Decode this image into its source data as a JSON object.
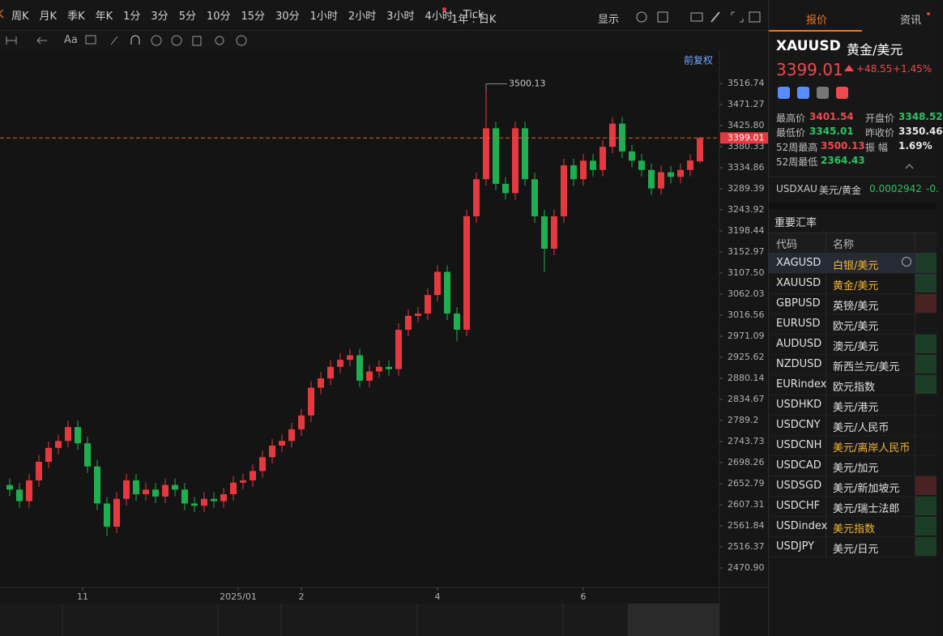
{
  "toolbar": {
    "timeframes": [
      "周K",
      "月K",
      "季K",
      "年K",
      "1分",
      "3分",
      "5分",
      "10分",
      "15分",
      "30分",
      "1小时",
      "2小时",
      "3小时",
      "4小时",
      "Tick"
    ],
    "range": "1年 : 日K",
    "display": "显示",
    "text_tool": "Aa"
  },
  "chart_data": {
    "type": "candlestick",
    "adjust": "前复权",
    "up_color": "#e5393f",
    "down_color": "#1fae50",
    "grid": false,
    "ylim": [
      2428.9,
      3588.4
    ],
    "yticks": [
      3516.74,
      3471.27,
      {
        "value": 3425.8,
        "label": "3425.80"
      },
      3380.33,
      3334.86,
      3289.39,
      3243.92,
      3198.44,
      3152.97,
      {
        "value": 3107.5,
        "label": "3107.50"
      },
      3062.03,
      3016.56,
      2971.09,
      2925.62,
      2880.14,
      2834.67,
      2789.2,
      2743.73,
      2698.26,
      2652.79,
      2607.31,
      2561.84,
      2516.37,
      {
        "value": 2470.9,
        "label": "2470.90"
      }
    ],
    "xlim": [
      -1,
      72
    ],
    "xticks": [
      {
        "value": 7.5,
        "label": "11"
      },
      {
        "value": 23.5,
        "label": "2025/01"
      },
      {
        "value": 30,
        "label": "2"
      },
      {
        "value": 44,
        "label": "4"
      },
      {
        "value": 59,
        "label": "6"
      }
    ],
    "last_price": 3399.01,
    "high_label": 3500.13,
    "high_index": 49,
    "open": [
      2650,
      2640,
      2615,
      2660,
      2700,
      2730,
      2745,
      2775,
      2740,
      2690,
      2610,
      2560,
      2620,
      2660,
      2630,
      2640,
      2625,
      2650,
      2640,
      2610,
      2605,
      2620,
      2615,
      2630,
      2655,
      2660,
      2680,
      2710,
      2735,
      2745,
      2770,
      2800,
      2860,
      2880,
      2905,
      2920,
      2930,
      2875,
      2895,
      2905,
      2900,
      2985,
      3015,
      3020,
      3060,
      3110,
      3020,
      2985,
      3230,
      3310,
      3420,
      3300,
      3280,
      3420,
      3310,
      3230,
      3160,
      3230,
      3340,
      3310,
      3350,
      3330,
      3380,
      3430,
      3370,
      3350,
      3330,
      3290,
      3325,
      3315,
      3330,
      3348.52
    ],
    "high": [
      2664,
      2654,
      2674,
      2714,
      2744,
      2759,
      2789,
      2789,
      2754,
      2704,
      2624,
      2634,
      2674,
      2674,
      2654,
      2654,
      2664,
      2664,
      2654,
      2624,
      2634,
      2634,
      2644,
      2669,
      2674,
      2694,
      2724,
      2749,
      2759,
      2784,
      2814,
      2874,
      2894,
      2919,
      2934,
      2944,
      2944,
      2909,
      2919,
      2919,
      2999,
      3029,
      3034,
      3074,
      3124,
      3124,
      3034,
      3244,
      3324,
      3500.13,
      3434,
      3314,
      3434,
      3434,
      3324,
      3244,
      3244,
      3354,
      3354,
      3364,
      3364,
      3394,
      3444,
      3444,
      3384,
      3364,
      3344,
      3339,
      3339,
      3344,
      3364,
      3401.54
    ],
    "low": [
      2626,
      2601,
      2601,
      2646,
      2686,
      2716,
      2731,
      2726,
      2676,
      2596,
      2540,
      2546,
      2606,
      2616,
      2616,
      2611,
      2611,
      2626,
      2596,
      2591,
      2591,
      2601,
      2601,
      2616,
      2641,
      2646,
      2666,
      2696,
      2721,
      2731,
      2756,
      2786,
      2846,
      2866,
      2891,
      2906,
      2861,
      2861,
      2881,
      2886,
      2886,
      2971,
      3001,
      3006,
      3046,
      3006,
      2960,
      2971,
      3216,
      3296,
      3286,
      3266,
      3266,
      3296,
      3216,
      3110,
      3146,
      3216,
      3296,
      3296,
      3316,
      3316,
      3366,
      3356,
      3336,
      3316,
      3276,
      3276,
      3301,
      3301,
      3316,
      3345.01
    ],
    "close": [
      2640,
      2615,
      2660,
      2700,
      2730,
      2745,
      2775,
      2740,
      2690,
      2610,
      2560,
      2620,
      2660,
      2630,
      2640,
      2625,
      2650,
      2640,
      2610,
      2605,
      2620,
      2615,
      2630,
      2655,
      2660,
      2680,
      2710,
      2735,
      2745,
      2770,
      2800,
      2860,
      2880,
      2905,
      2920,
      2930,
      2875,
      2895,
      2905,
      2900,
      2985,
      3015,
      3020,
      3060,
      3110,
      3020,
      2985,
      3230,
      3310,
      3420,
      3300,
      3280,
      3420,
      3310,
      3230,
      3160,
      3230,
      3340,
      3310,
      3350,
      3330,
      3380,
      3430,
      3370,
      3350,
      3330,
      3290,
      3325,
      3315,
      3330,
      3350.46,
      3399.01
    ]
  },
  "quote": {
    "tabs": [
      "报价",
      "资讯"
    ],
    "symbol": "XAUUSD",
    "name": "黄金/美元",
    "price": "3399.01",
    "change": "+48.55",
    "change_pct": "+1.45%",
    "stats": [
      {
        "label": "最高价",
        "value": "3401.54",
        "tone": "up"
      },
      {
        "label": "开盘价",
        "value": "3348.52",
        "tone": "down"
      },
      {
        "label": "最低价",
        "value": "3345.01",
        "tone": "down"
      },
      {
        "label": "昨收价",
        "value": "3350.46",
        "tone": "flat"
      },
      {
        "label": "52周最高",
        "value": "3500.13",
        "tone": "up"
      },
      {
        "label": "振 幅",
        "value": "1.69%",
        "tone": "flat"
      },
      {
        "label": "52周最低",
        "value": "2364.43",
        "tone": "down"
      }
    ],
    "cross": {
      "pair": "USDXAU",
      "name": "美元/黄金",
      "value": "0.0002942",
      "change": "-0."
    }
  },
  "rates": {
    "title": "重要汇率",
    "headers": [
      "代码",
      "名称"
    ],
    "rows": [
      {
        "code": "XAGUSD",
        "name": "白银/美元",
        "highlight": true,
        "trend": "down"
      },
      {
        "code": "XAUUSD",
        "name": "黄金/美元",
        "highlight": true,
        "trend": "down"
      },
      {
        "code": "GBPUSD",
        "name": "英镑/美元",
        "highlight": false,
        "trend": "up"
      },
      {
        "code": "EURUSD",
        "name": "欧元/美元",
        "highlight": false
      },
      {
        "code": "AUDUSD",
        "name": "澳元/美元",
        "highlight": false,
        "trend": "down"
      },
      {
        "code": "NZDUSD",
        "name": "新西兰元/美元",
        "highlight": false,
        "trend": "down"
      },
      {
        "code": "EURindex",
        "name": "欧元指数",
        "highlight": false,
        "trend": "down"
      },
      {
        "code": "USDHKD",
        "name": "美元/港元",
        "highlight": false
      },
      {
        "code": "USDCNY",
        "name": "美元/人民币",
        "highlight": false
      },
      {
        "code": "USDCNH",
        "name": "美元/离岸人民币",
        "highlight": true
      },
      {
        "code": "USDCAD",
        "name": "美元/加元",
        "highlight": false
      },
      {
        "code": "USDSGD",
        "name": "美元/新加坡元",
        "highlight": false,
        "trend": "up"
      },
      {
        "code": "USDCHF",
        "name": "美元/瑞士法郎",
        "highlight": false,
        "trend": "down"
      },
      {
        "code": "USDindex",
        "name": "美元指数",
        "highlight": true,
        "trend": "down"
      },
      {
        "code": "USDJPY",
        "name": "美元/日元",
        "highlight": false,
        "trend": "down"
      }
    ]
  }
}
